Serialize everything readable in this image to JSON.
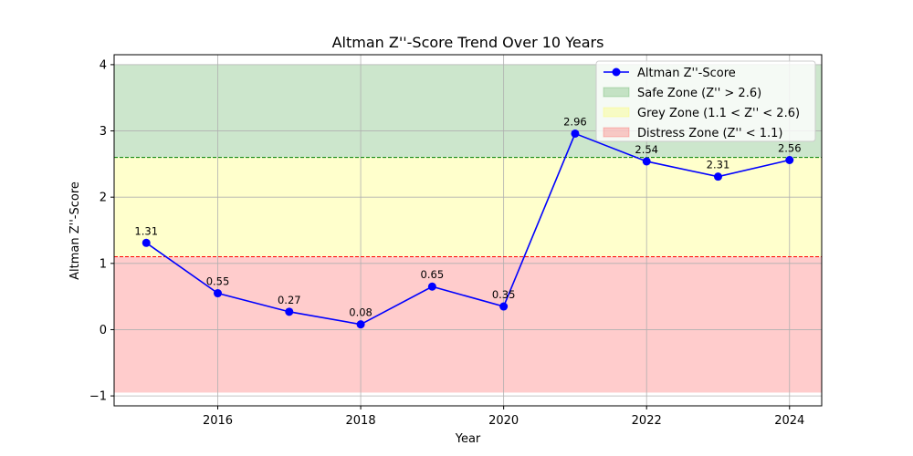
{
  "chart_data": {
    "type": "line",
    "title": "Altman Z''-Score Trend Over 10 Years",
    "xlabel": "Year",
    "ylabel": "Altman Z''-Score",
    "xlim": [
      2014.55,
      2024.45
    ],
    "ylim": [
      -1.15,
      4.15
    ],
    "x_ticks": [
      2016,
      2018,
      2020,
      2022,
      2024
    ],
    "y_ticks": [
      -1,
      0,
      1,
      2,
      3,
      4
    ],
    "x_tick_labels": [
      "2016",
      "2018",
      "2020",
      "2022",
      "2024"
    ],
    "y_tick_labels": [
      "−1",
      "0",
      "1",
      "2",
      "3",
      "4"
    ],
    "grid": true,
    "legend_position": "top-right",
    "x": [
      2015,
      2016,
      2017,
      2018,
      2019,
      2020,
      2021,
      2022,
      2023,
      2024
    ],
    "series": [
      {
        "name": "Altman Z''-Score",
        "color": "#0000ff",
        "marker": "circle",
        "values": [
          1.31,
          0.55,
          0.27,
          0.08,
          0.65,
          0.35,
          2.96,
          2.54,
          2.31,
          2.56
        ],
        "labels": [
          "1.31",
          "0.55",
          "0.27",
          "0.08",
          "0.65",
          "0.35",
          "2.96",
          "2.54",
          "2.31",
          "2.56"
        ]
      }
    ],
    "zones": [
      {
        "name": "Safe Zone (Z'' > 2.6)",
        "from": 2.6,
        "to": 4.0,
        "color": "#008000",
        "alpha": 0.2
      },
      {
        "name": "Grey Zone (1.1 < Z'' < 2.6)",
        "from": 1.1,
        "to": 2.6,
        "color": "#ffff00",
        "alpha": 0.2
      },
      {
        "name": "Distress Zone (Z'' < 1.1)",
        "from": -0.95,
        "to": 1.1,
        "color": "#ff0000",
        "alpha": 0.2
      }
    ],
    "thresholds": [
      {
        "value": 2.6,
        "color": "#008000",
        "style": "dashed"
      },
      {
        "value": 1.1,
        "color": "#ff0000",
        "style": "dashed"
      }
    ]
  }
}
